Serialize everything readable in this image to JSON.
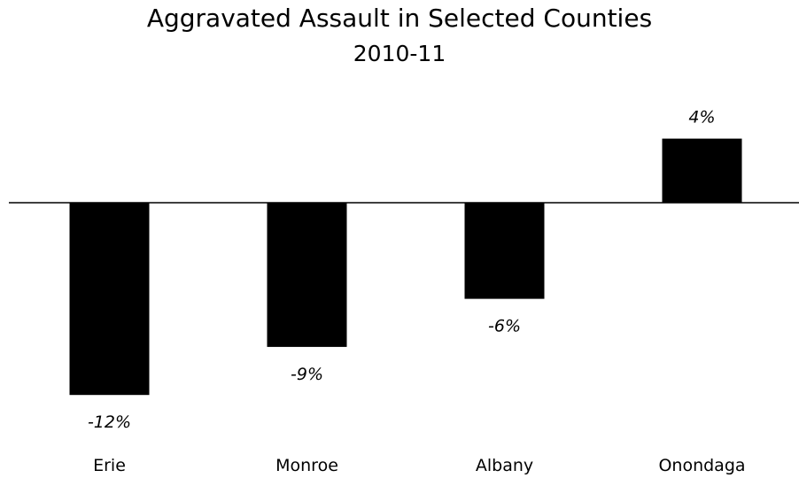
{
  "chart_data": {
    "type": "bar",
    "title": "Aggravated Assault in Selected Counties",
    "subtitle": "2010-11",
    "categories": [
      "Erie",
      "Monroe",
      "Albany",
      "Onondaga"
    ],
    "values": [
      -12,
      -9,
      -6,
      4
    ],
    "data_labels": [
      "-12%",
      "-9%",
      "-6%",
      "4%"
    ],
    "xlabel": "",
    "ylabel": "",
    "ylim": [
      -12,
      4
    ],
    "grid": false,
    "legend": "none",
    "bar_color": "#000000",
    "axis_color": "#000000"
  }
}
